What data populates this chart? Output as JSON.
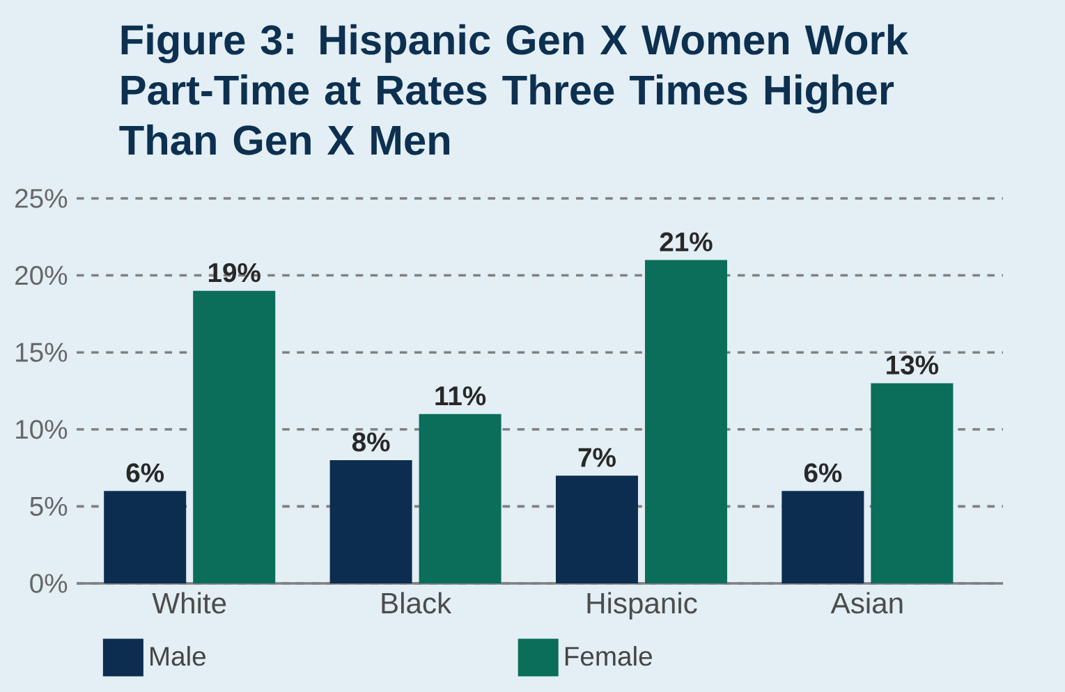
{
  "chart_data": {
    "type": "bar",
    "title": "Figure 3: Hispanic Gen X Women Work Part-Time at Rates Three Times Higher Than Gen X Men",
    "categories": [
      "White",
      "Black",
      "Hispanic",
      "Asian"
    ],
    "series": [
      {
        "name": "Male",
        "color": "#0c2d4f",
        "values": [
          6,
          8,
          7,
          6
        ],
        "value_labels": [
          "6%",
          "8%",
          "7%",
          "6%"
        ]
      },
      {
        "name": "Female",
        "color": "#0a6e5a",
        "values": [
          19,
          11,
          21,
          13
        ],
        "value_labels": [
          "19%",
          "11%",
          "21%",
          "13%"
        ]
      }
    ],
    "ylim": [
      0,
      25
    ],
    "yticks": [
      {
        "value": 0,
        "label": "0%"
      },
      {
        "value": 5,
        "label": "5%"
      },
      {
        "value": 10,
        "label": "10%"
      },
      {
        "value": 15,
        "label": "15%"
      },
      {
        "value": 20,
        "label": "20%"
      },
      {
        "value": 25,
        "label": "25%"
      }
    ],
    "grid": "y",
    "legend": "bottom"
  }
}
